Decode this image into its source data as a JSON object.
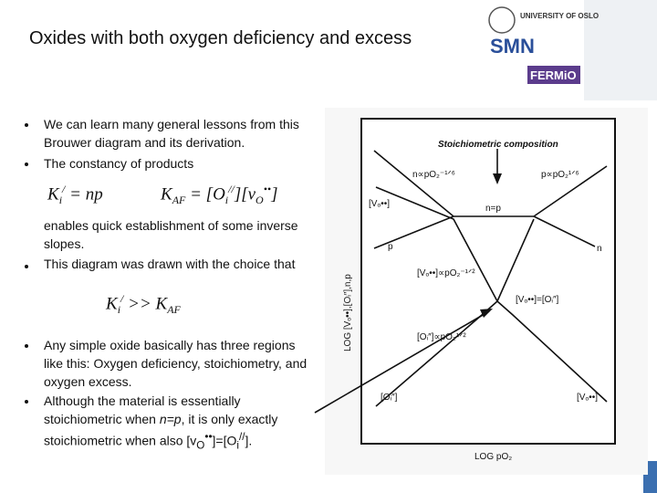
{
  "header": {
    "title": "Oxides with both oxygen deficiency and excess"
  },
  "logos": {
    "university": "UNIVERSITY OF OSLO",
    "smn": "SMN",
    "fermio": "FERMiO"
  },
  "bullets": {
    "b1": "We can learn many general lessons from this Brouwer diagram and its derivation.",
    "b2": "The constancy of products",
    "b2_cont": "enables quick establishment of some inverse slopes.",
    "b3": "This diagram was drawn with the choice that",
    "b4": "Any simple oxide basically has three regions like this: Oxygen deficiency, stoichiometry, and oxygen excess.",
    "b5": [
      "Although the material is essentially stoichiometric when ",
      "n=p",
      ", it is only exactly stoichiometric when also [v",
      "O",
      "••",
      "]=[O",
      "i",
      "//",
      "]."
    ]
  },
  "equations": {
    "eq1": [
      "K",
      "i",
      "/",
      " = np"
    ],
    "eq2": [
      "K",
      "AF",
      " = [O",
      "i",
      "//",
      "][v",
      "O",
      "••",
      "]"
    ],
    "eq3": [
      "K",
      "i",
      "/",
      " >> K",
      "AF"
    ]
  },
  "diagram": {
    "top_label": "Stoichiometric   composition",
    "n_low": "n∝pO₂⁻¹ᐟ⁶",
    "p_high": "p∝pO₂¹ᐟ⁶",
    "vo_left": "[Vₒ••]",
    "n_eq_p": "n=p",
    "p_label": "p",
    "n_label": "n",
    "vo_slope": "[Vₒ••]∝pO₂⁻¹ᐟ²",
    "vo_eq_oi": "[Vₒ••]=[Oᵢ″]",
    "oi_slope": "[Oᵢ″]∝pO₂¹ᐟ²",
    "oi_left": "[Oᵢ″]",
    "vo_right": "[Vₒ••]",
    "y_axis": "LOG [Vₒ••],[Oᵢ″],n,p",
    "x_axis": "LOG pO₂"
  }
}
